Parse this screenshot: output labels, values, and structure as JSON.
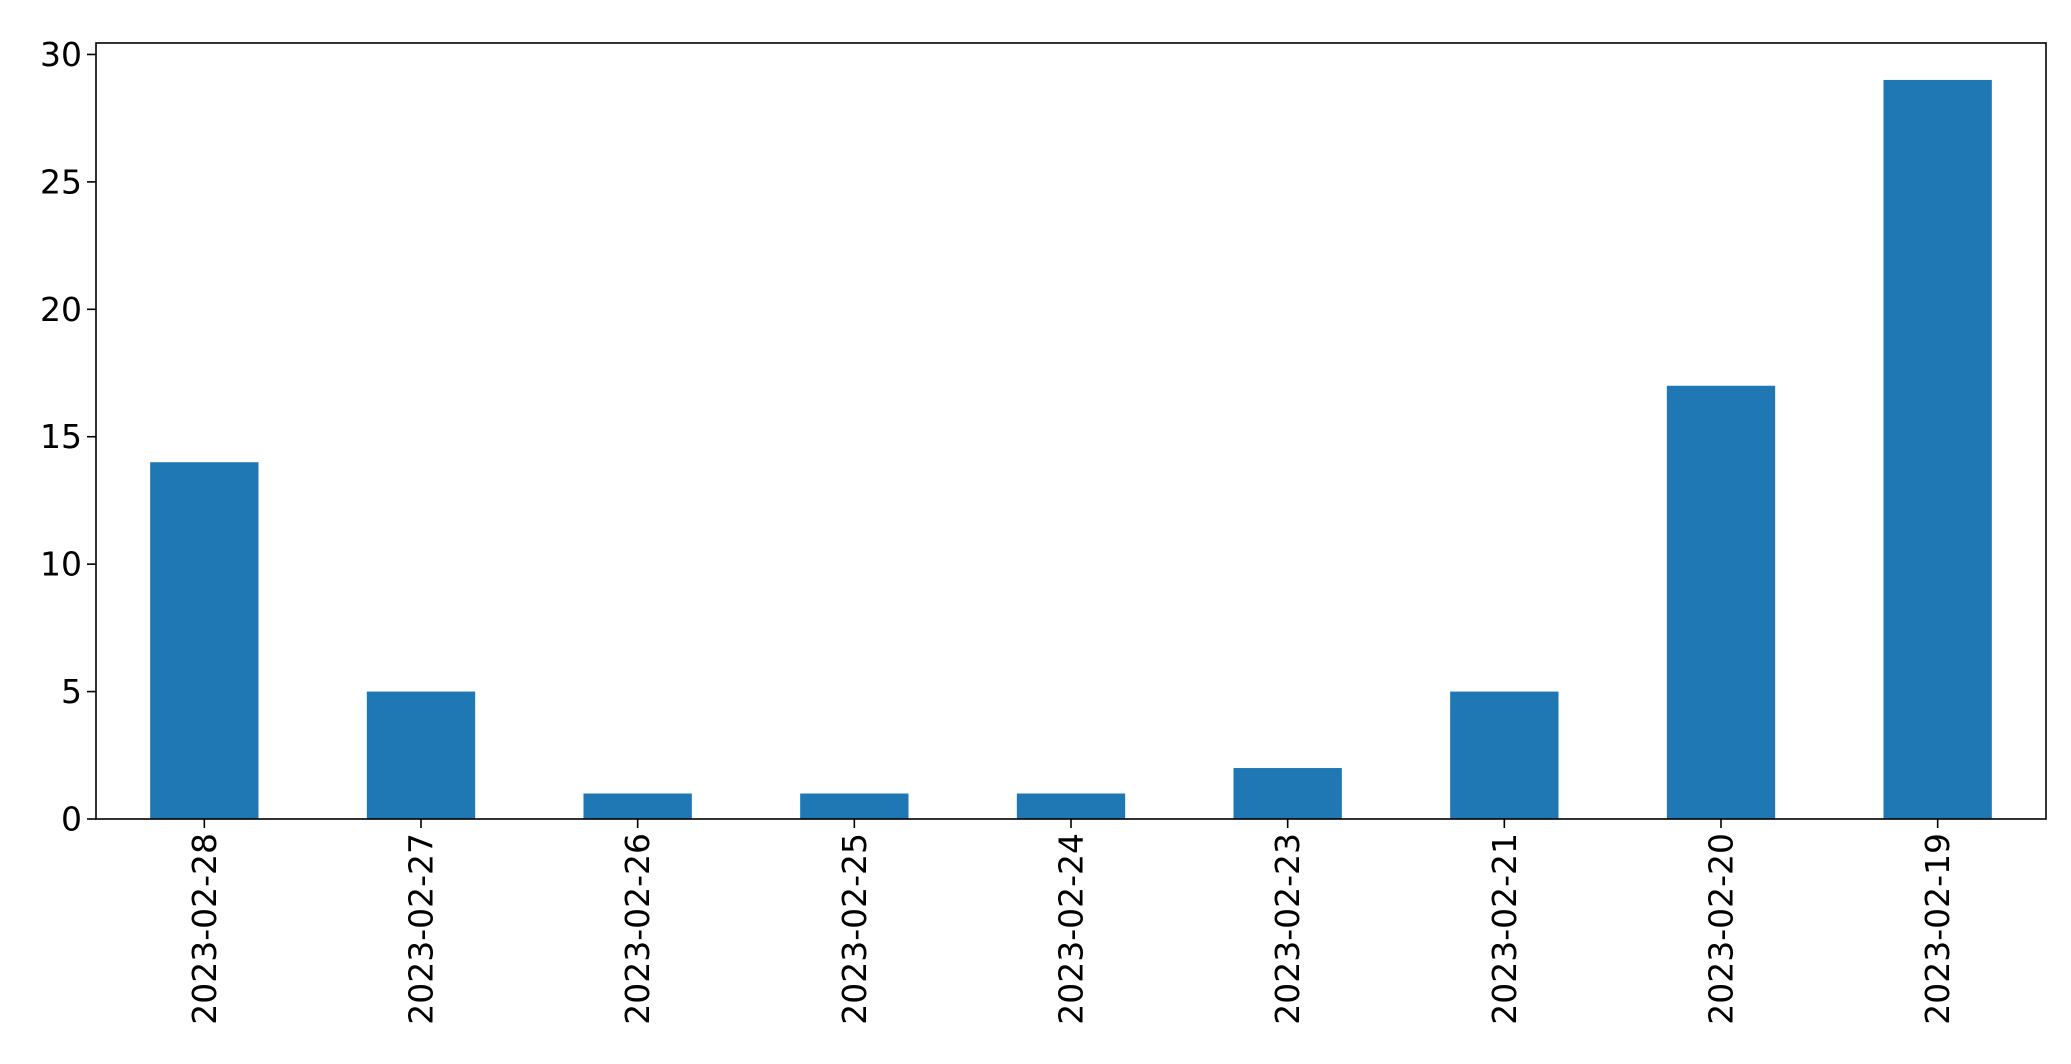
{
  "chart_data": {
    "type": "bar",
    "categories": [
      "2023-02-28",
      "2023-02-27",
      "2023-02-26",
      "2023-02-25",
      "2023-02-24",
      "2023-02-23",
      "2023-02-21",
      "2023-02-20",
      "2023-02-19"
    ],
    "values": [
      14,
      5,
      1,
      1,
      1,
      2,
      5,
      17,
      29
    ],
    "title": "",
    "xlabel": "",
    "ylabel": "",
    "ylim": [
      0,
      30.45
    ],
    "yticks": [
      "0",
      "5",
      "10",
      "15",
      "20",
      "25",
      "30"
    ],
    "grid": false,
    "legend": "none",
    "bar_color": "#1f77b4"
  }
}
